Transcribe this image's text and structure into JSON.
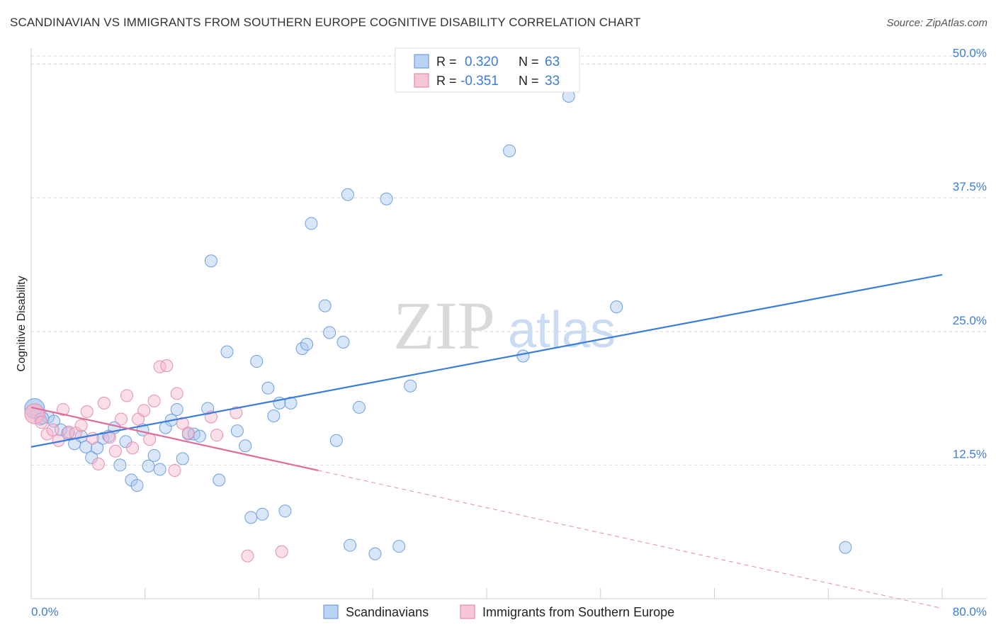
{
  "title": "SCANDINAVIAN VS IMMIGRANTS FROM SOUTHERN EUROPE COGNITIVE DISABILITY CORRELATION CHART",
  "source": "Source: ZipAtlas.com",
  "watermark": {
    "zip": "ZIP",
    "atlas": "atlas"
  },
  "colors": {
    "blue": "#3b7dd8",
    "blue_fill": "#a9c8f0",
    "pink": "#e06b98",
    "pink_fill": "#f4b6cc",
    "grid": "#d8d8d8"
  },
  "legend": {
    "series1": {
      "r_label": "R = ",
      "r_value": "0.320",
      "n_label": "N = ",
      "n_value": "63"
    },
    "series2": {
      "r_label": "R = ",
      "r_value": "-0.351",
      "n_label": "N = ",
      "n_value": "33"
    }
  },
  "bottom_legend": {
    "series1": "Scandinavians",
    "series2": "Immigrants from Southern Europe"
  },
  "chart_data": {
    "type": "scatter",
    "title": "SCANDINAVIAN VS IMMIGRANTS FROM SOUTHERN EUROPE COGNITIVE DISABILITY CORRELATION CHART",
    "xlabel": "",
    "ylabel": "Cognitive Disability",
    "xlim": [
      0,
      80
    ],
    "ylim": [
      0,
      51.5
    ],
    "x_tick_labels": {
      "left": "0.0%",
      "right": "80.0%"
    },
    "y_ticks": [
      {
        "value": 12.5,
        "label": "12.5%"
      },
      {
        "value": 25.0,
        "label": "25.0%"
      },
      {
        "value": 37.5,
        "label": "37.5%"
      },
      {
        "value": 50.0,
        "label": "50.0%"
      }
    ],
    "series": [
      {
        "name": "Scandinavians",
        "color": "#3b7dd8",
        "trend": {
          "x": [
            0,
            80
          ],
          "y": [
            14.2,
            30.3
          ],
          "style": "solid"
        },
        "points": [
          [
            0.3,
            17.8
          ],
          [
            0.8,
            16.8
          ],
          [
            1.5,
            17.0
          ],
          [
            2.0,
            16.6
          ],
          [
            2.6,
            15.8
          ],
          [
            3.2,
            15.5
          ],
          [
            3.8,
            14.5
          ],
          [
            4.4,
            15.2
          ],
          [
            4.8,
            14.2
          ],
          [
            5.3,
            13.2
          ],
          [
            5.8,
            14.1
          ],
          [
            6.3,
            15.0
          ],
          [
            6.8,
            15.2
          ],
          [
            7.3,
            16.0
          ],
          [
            7.8,
            12.5
          ],
          [
            8.3,
            14.7
          ],
          [
            8.8,
            11.1
          ],
          [
            9.3,
            10.6
          ],
          [
            9.8,
            15.8
          ],
          [
            10.3,
            12.4
          ],
          [
            10.8,
            13.4
          ],
          [
            11.3,
            12.1
          ],
          [
            11.8,
            16.0
          ],
          [
            12.3,
            16.7
          ],
          [
            12.8,
            17.7
          ],
          [
            13.3,
            13.1
          ],
          [
            13.8,
            15.4
          ],
          [
            14.3,
            15.4
          ],
          [
            14.8,
            15.2
          ],
          [
            15.5,
            17.8
          ],
          [
            15.8,
            31.6
          ],
          [
            16.5,
            11.1
          ],
          [
            17.2,
            23.1
          ],
          [
            18.1,
            15.7
          ],
          [
            18.8,
            14.3
          ],
          [
            19.3,
            7.6
          ],
          [
            19.8,
            22.2
          ],
          [
            20.3,
            7.9
          ],
          [
            20.8,
            19.7
          ],
          [
            21.3,
            17.1
          ],
          [
            21.8,
            18.3
          ],
          [
            22.3,
            8.2
          ],
          [
            22.8,
            18.3
          ],
          [
            23.8,
            23.4
          ],
          [
            24.2,
            23.8
          ],
          [
            24.6,
            35.1
          ],
          [
            25.8,
            27.4
          ],
          [
            26.2,
            24.9
          ],
          [
            26.8,
            14.8
          ],
          [
            27.4,
            24.0
          ],
          [
            27.8,
            37.8
          ],
          [
            28.0,
            5.0
          ],
          [
            28.8,
            17.9
          ],
          [
            30.2,
            4.2
          ],
          [
            31.2,
            37.4
          ],
          [
            32.3,
            4.9
          ],
          [
            33.3,
            19.9
          ],
          [
            42.0,
            41.9
          ],
          [
            43.2,
            22.7
          ],
          [
            47.2,
            47.0
          ],
          [
            51.4,
            27.3
          ],
          [
            71.5,
            4.8
          ],
          [
            1.0,
            16.9
          ]
        ]
      },
      {
        "name": "Immigrants from Southern Europe",
        "color": "#e06b98",
        "trend": {
          "x": [
            0,
            25.2
          ],
          "y": [
            17.9,
            12.0
          ],
          "style": "solid",
          "extended_to": [
            80,
            -0.9
          ],
          "extended_style": "dashed"
        },
        "points": [
          [
            0.3,
            17.3
          ],
          [
            0.9,
            16.5
          ],
          [
            1.4,
            15.4
          ],
          [
            1.9,
            15.8
          ],
          [
            2.4,
            14.8
          ],
          [
            2.8,
            17.7
          ],
          [
            3.3,
            15.6
          ],
          [
            3.9,
            15.5
          ],
          [
            4.4,
            16.2
          ],
          [
            4.9,
            17.5
          ],
          [
            5.4,
            15.0
          ],
          [
            5.9,
            12.6
          ],
          [
            6.4,
            18.3
          ],
          [
            6.9,
            15.1
          ],
          [
            7.4,
            13.8
          ],
          [
            7.9,
            16.8
          ],
          [
            8.4,
            19.0
          ],
          [
            8.9,
            14.1
          ],
          [
            9.4,
            16.8
          ],
          [
            9.9,
            17.6
          ],
          [
            10.4,
            14.9
          ],
          [
            10.8,
            18.5
          ],
          [
            11.3,
            21.7
          ],
          [
            11.9,
            21.8
          ],
          [
            12.6,
            12.0
          ],
          [
            12.8,
            19.2
          ],
          [
            13.3,
            16.4
          ],
          [
            13.8,
            15.5
          ],
          [
            15.8,
            17.0
          ],
          [
            16.3,
            15.3
          ],
          [
            18.0,
            17.4
          ],
          [
            19.0,
            4.0
          ],
          [
            22.0,
            4.4
          ]
        ]
      }
    ]
  }
}
